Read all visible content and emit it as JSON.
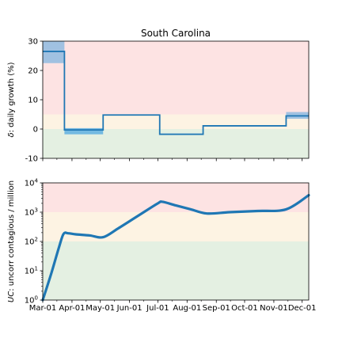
{
  "chart_data": [
    {
      "type": "line",
      "title": "South Carolina",
      "xlabel": "",
      "ylabel_symbol": "δ",
      "ylabel": ": daily growth (%)",
      "ylim": [
        -10,
        30
      ],
      "yticks": [
        -10,
        0,
        10,
        20,
        30
      ],
      "bands": [
        {
          "from": 5,
          "to": 30,
          "color": "#fde3e3"
        },
        {
          "from": 0,
          "to": 5,
          "color": "#fdf3e3"
        },
        {
          "from": -10,
          "to": 0,
          "color": "#e4f0e2"
        }
      ],
      "segments": [
        {
          "x0": "2020-03-01",
          "x1": "2020-03-24",
          "y": 26.5,
          "ci": [
            22.5,
            30
          ]
        },
        {
          "x0": "2020-03-24",
          "x1": "2020-05-04",
          "y": -0.3,
          "ci": [
            -1.8,
            0.3
          ]
        },
        {
          "x0": "2020-05-04",
          "x1": "2020-07-03",
          "y": 4.8,
          "ci": [
            4.6,
            5.0
          ]
        },
        {
          "x0": "2020-07-03",
          "x1": "2020-08-18",
          "y": -1.8,
          "ci": [
            -2.0,
            -1.5
          ]
        },
        {
          "x0": "2020-08-18",
          "x1": "2020-11-14",
          "y": 1.1,
          "ci": [
            0.9,
            1.3
          ]
        },
        {
          "x0": "2020-11-14",
          "x1": "2020-12-08",
          "y": 4.5,
          "ci": [
            3.5,
            5.8
          ]
        }
      ],
      "colors": {
        "line": "#1f77b4",
        "ci": "#9bbfe0",
        "ci_alt": "#6db5e0"
      }
    },
    {
      "type": "line",
      "xlabel": "",
      "ylabel_symbol": "UC",
      "ylabel": ": uncorr contagious / million",
      "yscale": "log",
      "ylim": [
        1,
        10000
      ],
      "yticks": [
        {
          "value": 1,
          "base": "10",
          "exp": "0"
        },
        {
          "value": 10,
          "base": "10",
          "exp": "1"
        },
        {
          "value": 100,
          "base": "10",
          "exp": "2"
        },
        {
          "value": 1000,
          "base": "10",
          "exp": "3"
        },
        {
          "value": 10000,
          "base": "10",
          "exp": "4"
        }
      ],
      "bands": [
        {
          "from": 1000,
          "to": 10000,
          "color": "#fde3e3"
        },
        {
          "from": 100,
          "to": 1000,
          "color": "#fdf3e3"
        },
        {
          "from": 1,
          "to": 100,
          "color": "#e4f0e2"
        }
      ],
      "series": [
        {
          "x": [
            "2020-03-01",
            "2020-03-10",
            "2020-03-18",
            "2020-03-23",
            "2020-03-28",
            "2020-04-05",
            "2020-04-20",
            "2020-05-04",
            "2020-05-20",
            "2020-06-10",
            "2020-07-01",
            "2020-07-06",
            "2020-07-20",
            "2020-08-05",
            "2020-08-22",
            "2020-09-15",
            "2020-10-15",
            "2020-11-14",
            "2020-12-08"
          ],
          "y": [
            1,
            8,
            60,
            180,
            190,
            175,
            160,
            140,
            280,
            750,
            2000,
            2250,
            1700,
            1250,
            900,
            1000,
            1100,
            1250,
            3800
          ]
        }
      ],
      "colors": {
        "line": "#1f77b4"
      }
    }
  ],
  "x_axis": {
    "range": [
      "2020-03-01",
      "2020-12-08"
    ],
    "tick_labels": [
      "Mar-01",
      "Apr-01",
      "May-01",
      "Jun-01",
      "Jul-01",
      "Aug-01",
      "Sep-01",
      "Oct-01",
      "Nov-01",
      "Dec-01"
    ],
    "tick_dates": [
      "2020-03-01",
      "2020-04-01",
      "2020-05-01",
      "2020-06-01",
      "2020-07-01",
      "2020-08-01",
      "2020-09-01",
      "2020-10-01",
      "2020-11-01",
      "2020-12-01"
    ],
    "minor_ticks": true
  }
}
